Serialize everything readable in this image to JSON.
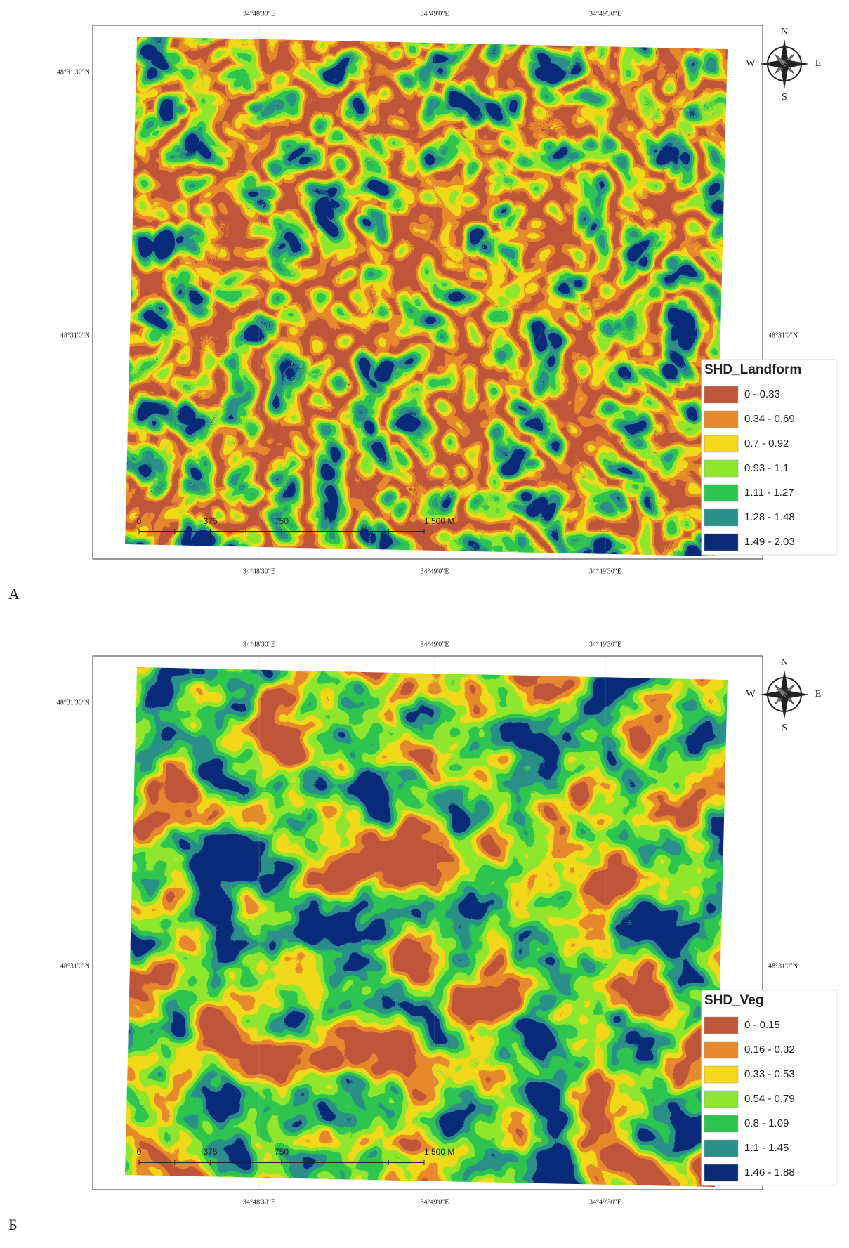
{
  "compass": {
    "N": "N",
    "S": "S",
    "E": "E",
    "W": "W"
  },
  "coordinates": {
    "top": [
      "34°48'30\"E",
      "34°49'0\"E",
      "34°49'30\"E"
    ],
    "bottom": [
      "34°48'30\"E",
      "34°49'0\"E",
      "34°49'30\"E"
    ],
    "left": [
      "48°31'30\"N",
      "48°31'0\"N"
    ],
    "right": [
      "48°31'0\"N"
    ]
  },
  "panels": [
    {
      "label": "А",
      "legend_title": "SHD_Landform",
      "scale_labels": [
        "0",
        "375",
        "750",
        "1,500 M"
      ],
      "classes": [
        {
          "label": "0 - 0.33",
          "color": "#c0573a"
        },
        {
          "label": "0.34 - 0.69",
          "color": "#e68a2e"
        },
        {
          "label": "0.7 - 0.92",
          "color": "#f2d91a"
        },
        {
          "label": "0.93 - 1.1",
          "color": "#8ee62e"
        },
        {
          "label": "1.11 - 1.27",
          "color": "#2ec450"
        },
        {
          "label": "1.28 - 1.48",
          "color": "#2a8f8a"
        },
        {
          "label": "1.49 - 2.03",
          "color": "#0a2a78"
        }
      ]
    },
    {
      "label": "Б",
      "legend_title": "SHD_Veg",
      "scale_labels": [
        "0",
        "375",
        "750",
        "1,500 M"
      ],
      "classes": [
        {
          "label": "0 - 0.15",
          "color": "#c0573a"
        },
        {
          "label": "0.16 - 0.32",
          "color": "#e68a2e"
        },
        {
          "label": "0.33 - 0.53",
          "color": "#f2d91a"
        },
        {
          "label": "0.54 - 0.79",
          "color": "#8ee62e"
        },
        {
          "label": "0.8 - 1.09",
          "color": "#2ec450"
        },
        {
          "label": "1.1 - 1.45",
          "color": "#2a8f8a"
        },
        {
          "label": "1.46 - 1.88",
          "color": "#0a2a78"
        }
      ]
    }
  ]
}
